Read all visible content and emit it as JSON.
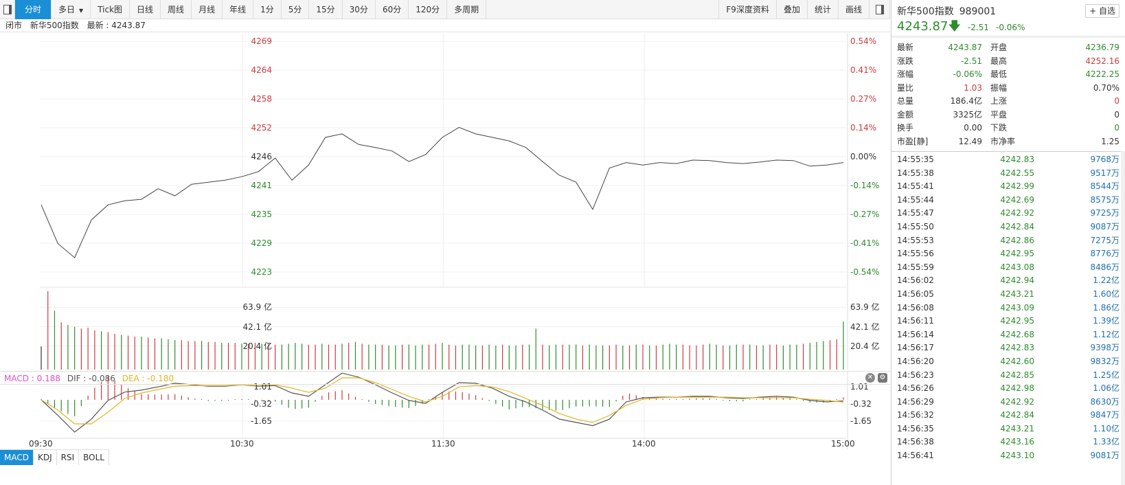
{
  "toolbar": {
    "tabs": [
      "分时",
      "多日",
      "Tick图",
      "日线",
      "周线",
      "月线",
      "年线",
      "1分",
      "5分",
      "15分",
      "30分",
      "60分",
      "120分",
      "多周期"
    ],
    "active": "分时",
    "dropdown_icon": "caret-down-icon",
    "right": [
      "F9深度资料",
      "叠加",
      "统计",
      "画线"
    ]
  },
  "info": {
    "status": "闭市",
    "name": "新华500指数",
    "latest_label": "最新 : 4243.87"
  },
  "colors": {
    "up": "#d0393e",
    "down": "#2e8b2e",
    "accent": "#1a8fd6",
    "macd": "#e64fc8",
    "dif": "#555555",
    "dea": "#e6b422"
  },
  "price_axis": {
    "left": [
      "4269",
      "4264",
      "4258",
      "4252",
      "4246",
      "4241",
      "4235",
      "4229",
      "4223"
    ],
    "right": [
      "0.54%",
      "0.41%",
      "0.27%",
      "0.14%",
      "0.00%",
      "-0.14%",
      "-0.27%",
      "-0.41%",
      "-0.54%"
    ],
    "prev_close": 4246.38,
    "ylim": [
      4223.45,
      4269.31
    ]
  },
  "time_axis": [
    "09:30",
    "10:30",
    "11:30",
    "14:00",
    "15:00"
  ],
  "price": [
    4236.8,
    4229.1,
    4226.3,
    4233.8,
    4236.8,
    4237.6,
    4237.9,
    4240.0,
    4238.6,
    4240.9,
    4241.3,
    4241.7,
    4242.4,
    4243.4,
    4246.1,
    4241.7,
    4244.7,
    4250.2,
    4250.9,
    4248.8,
    4248.2,
    4247.5,
    4245.4,
    4246.8,
    4250.2,
    4252.2,
    4250.9,
    4250.2,
    4249.5,
    4248.2,
    4245.4,
    4242.7,
    4241.3,
    4235.9,
    4244.1,
    4245.2,
    4244.7,
    4245.2,
    4245.0,
    4245.7,
    4245.6,
    4245.2,
    4245.0,
    4245.3,
    4245.7,
    4245.6,
    4244.5,
    4244.7,
    4245.2
  ],
  "volume_axis": [
    "63.9 亿",
    "42.1 亿",
    "20.4 亿"
  ],
  "volume": [
    20,
    82,
    60,
    47,
    44,
    42,
    40,
    41,
    38,
    37,
    36,
    34,
    33,
    32,
    31,
    31,
    30,
    29,
    29,
    28,
    27,
    27,
    26,
    26,
    26,
    25,
    25,
    24,
    24,
    24,
    23,
    23,
    24,
    23,
    23,
    22,
    22,
    23,
    24,
    23,
    22,
    22,
    23,
    22,
    22,
    23,
    24,
    25,
    23,
    22,
    22,
    22,
    21,
    21,
    22,
    22,
    21,
    22,
    22,
    23,
    24,
    22,
    21,
    22,
    22,
    21,
    21,
    22,
    21,
    22,
    21,
    21,
    22,
    22,
    40,
    22,
    21,
    22,
    22,
    22,
    22,
    21,
    22,
    21,
    21,
    21,
    22,
    21,
    21,
    22,
    22,
    21,
    21,
    22,
    23,
    22,
    22,
    21,
    21,
    22,
    23,
    22,
    21,
    21,
    22,
    22,
    22,
    21,
    21,
    22,
    22,
    21,
    22,
    22,
    23,
    24,
    25,
    26,
    27,
    28,
    48
  ],
  "macd_header": {
    "macd": "MACD : 0.188",
    "dif": "DIF : -0.086",
    "dea": "DEA : -0.180",
    "close_icon": "close-icon",
    "settings_icon": "gear-icon"
  },
  "macd_axis": [
    "1.01",
    "-0.32",
    "-1.65"
  ],
  "dif": [
    0,
    -1.2,
    -2.5,
    -1.5,
    -0.05,
    0.6,
    0.75,
    1.0,
    1.28,
    1.17,
    1.06,
    1.06,
    1.17,
    1.06,
    1.1,
    0.53,
    0.27,
    1.17,
    2.07,
    1.75,
    1.17,
    0.53,
    -0.05,
    -0.27,
    0.58,
    1.33,
    1.28,
    0.9,
    0.27,
    -0.16,
    -0.8,
    -1.49,
    -1.75,
    -2.0,
    -1.5,
    -0.16,
    0.16,
    0.21,
    0.21,
    0.27,
    0.27,
    0.16,
    0.1,
    0.21,
    0.27,
    0.21,
    -0.05,
    -0.16,
    -0.086
  ],
  "dea": [
    0,
    -0.8,
    -1.86,
    -1.86,
    -0.96,
    0.1,
    0.53,
    0.8,
    1.06,
    1.1,
    1.1,
    1.1,
    1.17,
    1.1,
    1.17,
    0.9,
    0.58,
    0.9,
    1.7,
    1.7,
    1.33,
    0.8,
    0.27,
    -0.16,
    0.27,
    1.0,
    1.1,
    1.0,
    0.64,
    0.1,
    -0.43,
    -1.06,
    -1.49,
    -1.75,
    -1.22,
    -0.43,
    0.05,
    0.16,
    0.21,
    0.21,
    0.21,
    0.21,
    0.16,
    0.16,
    0.16,
    0.16,
    0.05,
    -0.05,
    -0.18
  ],
  "indicator_tabs": [
    "MACD",
    "KDJ",
    "RSI",
    "BOLL"
  ],
  "panel": {
    "name": "新华500指数",
    "code": "989001",
    "add_label": "+ 自选",
    "price": "4243.87",
    "arrow_icon": "arrow-down-icon",
    "change": "-2.51",
    "pct": "-0.06%",
    "stats": [
      [
        "最新",
        "4243.87",
        "green",
        "开盘",
        "4236.79",
        "green"
      ],
      [
        "涨跌",
        "-2.51",
        "green",
        "最高",
        "4252.16",
        "red"
      ],
      [
        "涨幅",
        "-0.06%",
        "green",
        "最低",
        "4222.25",
        "green"
      ],
      [
        "量比",
        "1.03",
        "red",
        "振幅",
        "0.70%",
        ""
      ],
      [
        "总量",
        "186.4亿",
        "",
        "上涨",
        "0",
        "red"
      ],
      [
        "金额",
        "3325亿",
        "",
        "平盘",
        "0",
        ""
      ],
      [
        "换手",
        "0.00",
        "",
        "下跌",
        "0",
        "green"
      ],
      [
        "市盈[静]",
        "12.49",
        "",
        "市净率",
        "1.25",
        ""
      ]
    ],
    "trades": [
      [
        "14:55:35",
        "4242.83",
        "9768万"
      ],
      [
        "14:55:38",
        "4242.55",
        "9517万"
      ],
      [
        "14:55:41",
        "4242.99",
        "8544万"
      ],
      [
        "14:55:44",
        "4242.69",
        "8575万"
      ],
      [
        "14:55:47",
        "4242.92",
        "9725万"
      ],
      [
        "14:55:50",
        "4242.84",
        "9087万"
      ],
      [
        "14:55:53",
        "4242.86",
        "7275万"
      ],
      [
        "14:55:56",
        "4242.95",
        "8776万"
      ],
      [
        "14:55:59",
        "4243.08",
        "8486万"
      ],
      [
        "14:56:02",
        "4242.94",
        "1.22亿"
      ],
      [
        "14:56:05",
        "4243.21",
        "1.60亿"
      ],
      [
        "14:56:08",
        "4243.09",
        "1.86亿"
      ],
      [
        "14:56:11",
        "4242.95",
        "1.39亿"
      ],
      [
        "14:56:14",
        "4242.68",
        "1.12亿"
      ],
      [
        "14:56:17",
        "4242.83",
        "9398万"
      ],
      [
        "14:56:20",
        "4242.60",
        "9832万"
      ],
      [
        "14:56:23",
        "4242.85",
        "1.25亿"
      ],
      [
        "14:56:26",
        "4242.98",
        "1.06亿"
      ],
      [
        "14:56:29",
        "4242.92",
        "8630万"
      ],
      [
        "14:56:32",
        "4242.84",
        "9847万"
      ],
      [
        "14:56:35",
        "4243.21",
        "1.10亿"
      ],
      [
        "14:56:38",
        "4243.16",
        "1.33亿"
      ],
      [
        "14:56:41",
        "4243.10",
        "9081万"
      ]
    ]
  }
}
